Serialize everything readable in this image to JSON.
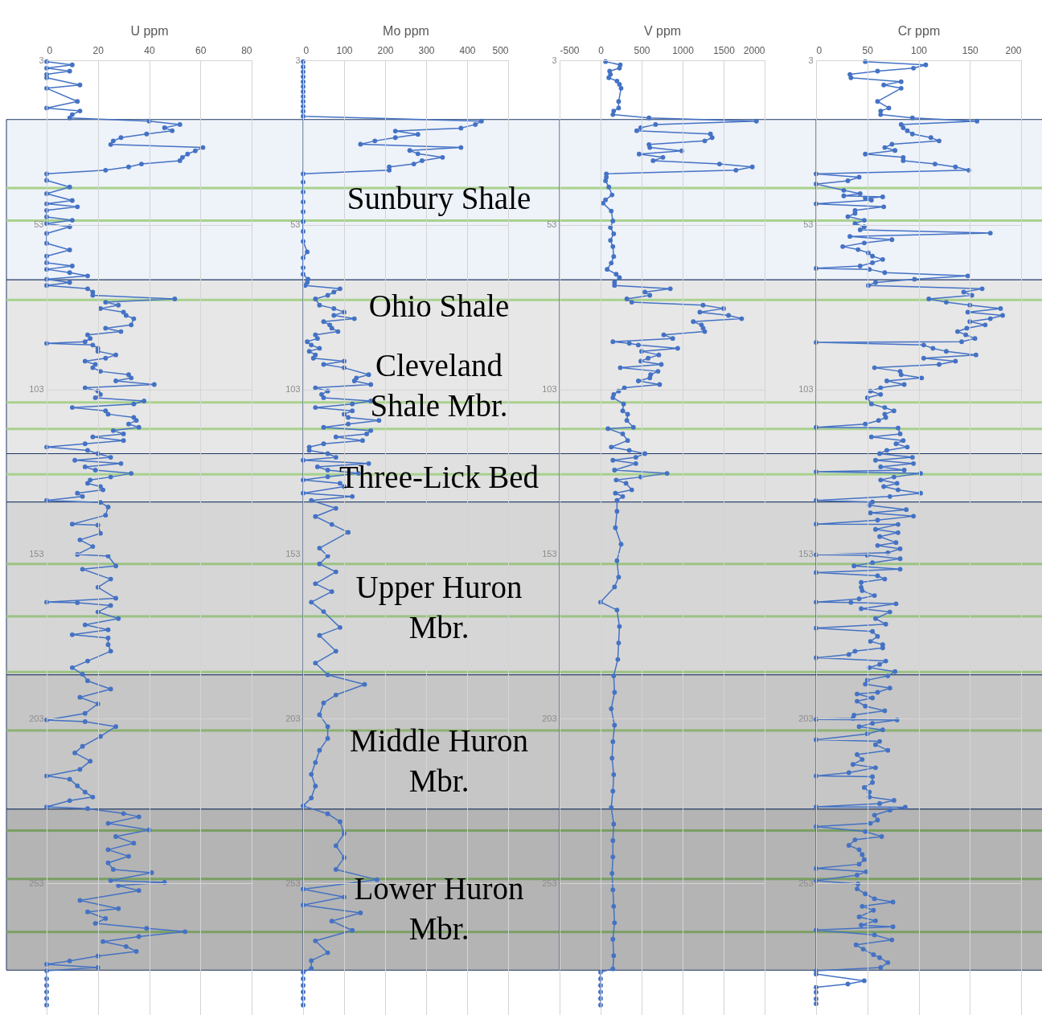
{
  "chart_data": [
    {
      "type": "line",
      "orientation": "horizontal",
      "xlabel": "U ppm",
      "marker": "circle",
      "grid": true,
      "xlim": [
        0,
        80
      ],
      "xticks": [
        0,
        20,
        40,
        60,
        80
      ],
      "ylim": [
        293,
        3
      ],
      "yticks": [
        3,
        53,
        103,
        153,
        203,
        253
      ],
      "series": [
        {
          "color": "#4472c4",
          "x": [
            3.4,
            4.4,
            5.4,
            6.3,
            7.3,
            8.3,
            10.5,
            11.5,
            15.5,
            17.5,
            18.4,
            19.5,
            20.5,
            21.5,
            22.5,
            23.5,
            24.4,
            25.4,
            26.5,
            27.5,
            28.6,
            29.5,
            30.5,
            31.5,
            32.5,
            33.5,
            34.5,
            35.4,
            36.4,
            37.5,
            39.5,
            41.5,
            43.5,
            45.6,
            46.6,
            47.5,
            48.6,
            50.6,
            51.6,
            52.6,
            53.6,
            55.6,
            58.6,
            60.6,
            62.5,
            64.5,
            65.5,
            66.5,
            67.5,
            68.5,
            69.5,
            70.5,
            71.4,
            72.4,
            73.4,
            74.4,
            75.5,
            76.5,
            77.4,
            78.4,
            79.5,
            80.5,
            81.5,
            83.4,
            84.4,
            85.4,
            86.4,
            87.5,
            88.5,
            89,
            89.5,
            90.5,
            91.4,
            92.5,
            93.5,
            94.4,
            95.4,
            96.4,
            97.5,
            98.5,
            99.5,
            100.4,
            101.5,
            102.5,
            103.5,
            104.5,
            105.5,
            106.5,
            107.4,
            108.5,
            109.5,
            110.5,
            111.5,
            112.4,
            113.5,
            114.5,
            115.5,
            116.5,
            117.4,
            118.5,
            119.5,
            120.5,
            121.5,
            122.5,
            123.6,
            124.5,
            125.5,
            126.5,
            127.5,
            128.5,
            129.6,
            130.5,
            131.5,
            132.5,
            133.5,
            134.5,
            135.5,
            136.7,
            137.3,
            138.7,
            141.2,
            143.9,
            144.2,
            146.7,
            148.7,
            150.7,
            153.1,
            153.6,
            156.6,
            157.6,
            160.6,
            163.1,
            166.4,
            167.6,
            167.8,
            168.6,
            170.6,
            172.6,
            174.5,
            176,
            177.5,
            178.5,
            180.5,
            182.5,
            185.5,
            187.5,
            189.5,
            191.5,
            194,
            196.5,
            198.5,
            201.4,
            203.4,
            203.9,
            205.4,
            208.4,
            211.4,
            213.4,
            215.9,
            218.4,
            220.4,
            221.4,
            223.4,
            225.3,
            226.8,
            227.9,
            229.8,
            230.3,
            231.8,
            232.8,
            234.8,
            236.8,
            238.8,
            240.8,
            242.8,
            244.8,
            246.8,
            248.8,
            249.8,
            252.2,
            252.7,
            253.7,
            255.2,
            258.2,
            260.7,
            261.7,
            263.7,
            265.2,
            266.7,
            267.7,
            269.2,
            270.7,
            272.2,
            273.7,
            275.1,
            276.6,
            277.6,
            278.6,
            279.6,
            282,
            284,
            286,
            288,
            290
          ],
          "values": [
            0,
            10,
            0,
            9,
            0,
            0,
            13,
            0,
            12,
            0,
            13,
            10,
            9,
            40,
            52,
            46,
            49,
            39,
            29,
            26,
            25,
            61,
            58,
            55,
            53,
            52,
            37,
            32,
            23,
            0,
            0,
            9,
            0,
            10,
            0,
            12,
            0,
            0,
            10,
            0,
            9,
            0,
            0,
            9,
            0,
            0,
            10,
            0,
            9,
            16,
            0,
            9,
            0,
            16,
            18,
            18,
            50,
            23,
            28,
            21,
            30,
            31,
            34,
            33,
            23,
            29,
            16,
            17,
            15,
            0,
            18,
            20,
            20,
            27,
            23,
            15,
            19,
            18,
            21,
            32,
            33,
            27,
            42,
            15,
            20,
            21,
            19,
            38,
            34,
            10,
            23,
            24,
            34,
            35,
            32,
            36,
            26,
            30,
            18,
            30,
            15,
            0,
            16,
            20,
            25,
            11,
            29,
            15,
            19,
            33,
            25,
            17,
            16,
            21,
            22,
            12,
            14,
            0,
            21,
            24,
            23,
            10,
            20,
            21,
            13,
            18,
            12,
            24,
            27,
            14,
            25,
            20,
            27,
            0,
            12,
            25,
            20,
            28,
            15,
            24,
            10,
            24,
            24,
            25,
            16,
            10,
            14,
            16,
            25,
            13,
            20,
            15,
            0,
            15,
            27,
            21,
            14,
            11,
            17,
            13,
            0,
            9,
            12,
            15,
            18,
            9,
            0,
            16,
            30,
            36,
            24,
            40,
            27,
            34,
            24,
            32,
            24,
            26,
            41,
            25,
            46,
            28,
            36,
            13,
            28,
            16,
            23,
            19,
            39,
            54,
            36,
            22,
            31,
            35,
            20,
            9,
            0,
            20,
            0,
            0,
            0,
            0,
            0,
            0
          ]
        }
      ],
      "bands": [
        {
          "axis": "y",
          "from": 21,
          "to": 69.7,
          "color": "#eef2f9"
        },
        {
          "axis": "y",
          "from": 69.7,
          "to": 122.5,
          "color": "#e7e7e7"
        },
        {
          "axis": "y",
          "from": 122.5,
          "to": 137.2,
          "color": "#e0e0e0"
        },
        {
          "axis": "y",
          "from": 137.2,
          "to": 189.7,
          "color": "#d6d6d6"
        },
        {
          "axis": "y",
          "from": 189.7,
          "to": 230.5,
          "color": "#c6c6c6"
        },
        {
          "axis": "y",
          "from": 230.5,
          "to": 279.4,
          "color": "#b4b4b4"
        }
      ],
      "ref_lines": [
        {
          "axis": "y",
          "value": 41.8,
          "color": "#a9d18e"
        },
        {
          "axis": "y",
          "value": 51.7,
          "color": "#a9d18e"
        },
        {
          "axis": "y",
          "value": 75.8,
          "color": "#a9d18e"
        },
        {
          "axis": "y",
          "value": 106.9,
          "color": "#a9d18e"
        },
        {
          "axis": "y",
          "value": 115,
          "color": "#a9d18e"
        },
        {
          "axis": "y",
          "value": 128.8,
          "color": "#a9d18e"
        },
        {
          "axis": "y",
          "value": 156,
          "color": "#9cc283"
        },
        {
          "axis": "y",
          "value": 171.9,
          "color": "#9cc283"
        },
        {
          "axis": "y",
          "value": 188.8,
          "color": "#9cc283"
        },
        {
          "axis": "y",
          "value": 206.6,
          "color": "#8cb173"
        },
        {
          "axis": "y",
          "value": 237,
          "color": "#7a9f63"
        },
        {
          "axis": "y",
          "value": 251.7,
          "color": "#7a9f63"
        },
        {
          "axis": "y",
          "value": 267.8,
          "color": "#7a9f63"
        }
      ]
    },
    {
      "type": "line",
      "orientation": "horizontal",
      "xlabel": "Mo ppm",
      "marker": "circle",
      "grid": true,
      "xlim": [
        0,
        500
      ],
      "xticks": [
        0,
        100,
        200,
        300,
        400,
        500
      ],
      "ylim": [
        293,
        3
      ],
      "yticks": [
        3,
        53,
        103,
        153,
        203,
        253
      ],
      "series": [
        {
          "color": "#4472c4",
          "x": [
            3.4,
            5,
            6.5,
            8,
            9.5,
            11,
            12.5,
            14,
            15.5,
            17,
            18.5,
            20,
            21.5,
            22.5,
            23.6,
            24.5,
            25.5,
            26.5,
            27.5,
            28.5,
            29.5,
            30.4,
            31.4,
            32.5,
            33.5,
            34.5,
            35.4,
            36.4,
            37.5,
            40,
            43,
            46,
            49,
            52,
            55,
            58,
            61.2,
            63,
            66,
            68,
            69.5,
            70.5,
            71.4,
            72.4,
            73.4,
            74.4,
            75.5,
            77.4,
            78.4,
            79.5,
            80.5,
            81.5,
            82.4,
            83.4,
            84.4,
            85.4,
            86.4,
            87.5,
            88.5,
            89.5,
            90.5,
            91.4,
            92.5,
            93.5,
            94.4,
            95.4,
            96.4,
            98.5,
            99.5,
            100.4,
            101.5,
            102.5,
            103.5,
            104.5,
            105.5,
            106.5,
            107.4,
            108.5,
            109.5,
            110.5,
            111.5,
            112.4,
            113.5,
            114.5,
            115.5,
            116.5,
            117.4,
            118.5,
            119.5,
            120.5,
            121.5,
            122.5,
            123.6,
            124.5,
            125.5,
            126.5,
            127.5,
            128.5,
            129.5,
            130.5,
            131.5,
            132.5,
            134.5,
            135.5,
            136.7,
            139.1,
            141.6,
            144,
            146.4,
            151.2,
            153.6,
            156,
            158.4,
            162,
            164.4,
            167.6,
            170.5,
            175.3,
            177.7,
            182.5,
            186.1,
            189.7,
            192.6,
            195.8,
            198.2,
            201.8,
            205.4,
            209,
            212.6,
            216.3,
            219.9,
            223.5,
            227.1,
            229.5,
            231.9,
            234.3,
            237.9,
            241.6,
            245.2,
            248.8,
            251.9,
            254.8,
            257.2,
            259.6,
            262,
            264.5,
            267.3,
            270.5,
            274.1,
            276.5,
            278.9,
            280,
            282,
            284,
            286,
            288,
            290
          ],
          "values": [
            0,
            0,
            0,
            0,
            0,
            0,
            0,
            0,
            0,
            0,
            0,
            0,
            435,
            420,
            385,
            225,
            280,
            225,
            175,
            140,
            385,
            260,
            280,
            340,
            290,
            270,
            210,
            210,
            0,
            0,
            0,
            0,
            0,
            0,
            0,
            0,
            10,
            0,
            0,
            0,
            12,
            10,
            5,
            90,
            75,
            60,
            30,
            40,
            75,
            100,
            75,
            125,
            50,
            65,
            70,
            85,
            30,
            35,
            10,
            20,
            40,
            15,
            30,
            25,
            100,
            50,
            100,
            160,
            130,
            125,
            165,
            30,
            60,
            45,
            50,
            165,
            120,
            30,
            120,
            100,
            110,
            185,
            110,
            50,
            165,
            155,
            80,
            145,
            50,
            15,
            15,
            60,
            80,
            0,
            160,
            35,
            60,
            135,
            60,
            0,
            90,
            100,
            0,
            120,
            20,
            80,
            30,
            70,
            110,
            40,
            60,
            40,
            80,
            30,
            70,
            20,
            50,
            90,
            40,
            80,
            30,
            60,
            150,
            80,
            50,
            40,
            60,
            60,
            40,
            30,
            20,
            30,
            20,
            0,
            60,
            90,
            100,
            80,
            100,
            80,
            180,
            0,
            100,
            0,
            140,
            70,
            120,
            30,
            60,
            20,
            20,
            0,
            0,
            0,
            0,
            0,
            0
          ]
        }
      ],
      "bands": [
        {
          "axis": "y",
          "from": 21,
          "to": 69.7,
          "color": "#eef2f9"
        },
        {
          "axis": "y",
          "from": 69.7,
          "to": 122.5,
          "color": "#e7e7e7"
        },
        {
          "axis": "y",
          "from": 122.5,
          "to": 137.2,
          "color": "#e0e0e0"
        },
        {
          "axis": "y",
          "from": 137.2,
          "to": 189.7,
          "color": "#d6d6d6"
        },
        {
          "axis": "y",
          "from": 189.7,
          "to": 230.5,
          "color": "#c6c6c6"
        },
        {
          "axis": "y",
          "from": 230.5,
          "to": 279.4,
          "color": "#b4b4b4"
        }
      ],
      "ref_lines": [
        {
          "axis": "y",
          "value": 41.8,
          "color": "#a9d18e"
        },
        {
          "axis": "y",
          "value": 51.7,
          "color": "#a9d18e"
        },
        {
          "axis": "y",
          "value": 75.8,
          "color": "#a9d18e"
        },
        {
          "axis": "y",
          "value": 106.9,
          "color": "#a9d18e"
        },
        {
          "axis": "y",
          "value": 115,
          "color": "#a9d18e"
        },
        {
          "axis": "y",
          "value": 128.8,
          "color": "#a9d18e"
        },
        {
          "axis": "y",
          "value": 156,
          "color": "#9cc283"
        },
        {
          "axis": "y",
          "value": 171.9,
          "color": "#9cc283"
        },
        {
          "axis": "y",
          "value": 188.8,
          "color": "#9cc283"
        },
        {
          "axis": "y",
          "value": 206.6,
          "color": "#8cb173"
        },
        {
          "axis": "y",
          "value": 237,
          "color": "#7a9f63"
        },
        {
          "axis": "y",
          "value": 251.7,
          "color": "#7a9f63"
        },
        {
          "axis": "y",
          "value": 267.8,
          "color": "#7a9f63"
        }
      ]
    },
    {
      "type": "line",
      "orientation": "horizontal",
      "xlabel": "V ppm",
      "marker": "circle",
      "grid": true,
      "xlim": [
        -500,
        2000
      ],
      "xticks": [
        -500,
        0,
        500,
        1000,
        1500,
        2000
      ],
      "ylim": [
        293,
        3
      ],
      "yticks": [
        3,
        53,
        103,
        153,
        203,
        253
      ],
      "series": [
        {
          "color": "#4472c4",
          "x": [
            3.4,
            4.4,
            5.4,
            6.3,
            7.3,
            8.3,
            9.3,
            10.3,
            11.5,
            15.5,
            17.5,
            18.4,
            19.5,
            20.5,
            21.5,
            22.5,
            23.5,
            24.4,
            25.4,
            26.5,
            27.5,
            28.6,
            29.5,
            30.5,
            31.5,
            32.5,
            33.5,
            34.5,
            35.4,
            36.4,
            37.5,
            38.5,
            39.6,
            41.5,
            43.9,
            45.4,
            46.4,
            48.8,
            51.8,
            53.8,
            55.7,
            57.7,
            59.6,
            62.6,
            64.6,
            66.5,
            68,
            69,
            70.5,
            71.4,
            72.4,
            73.4,
            74.4,
            75.5,
            76.5,
            77.4,
            78.4,
            79.5,
            80.5,
            81.5,
            82.4,
            83.4,
            84.4,
            85.4,
            86.4,
            87.5,
            88.5,
            89,
            89.5,
            90.5,
            91.4,
            92.5,
            93.5,
            94.4,
            95.4,
            96.4,
            97.5,
            98.5,
            99.5,
            100.4,
            101.5,
            102.5,
            103.5,
            104.5,
            105.5,
            107.4,
            109.5,
            110.5,
            112.4,
            114.5,
            114.9,
            116.5,
            118.5,
            120.5,
            121.5,
            122.5,
            123.6,
            124.5,
            125.5,
            127.5,
            128.5,
            129.6,
            130.5,
            131.5,
            133.5,
            134.5,
            135.5,
            136.7,
            140,
            145,
            150,
            155,
            160,
            163,
            167.6,
            170,
            175,
            180,
            185,
            190,
            195,
            200,
            205,
            210,
            215,
            220,
            225,
            230,
            235,
            240,
            245,
            250,
            255,
            260,
            265,
            270,
            275,
            279,
            280,
            282,
            284,
            286,
            288,
            290
          ],
          "values": [
            60,
            240,
            230,
            110,
            120,
            100,
            200,
            230,
            250,
            220,
            220,
            160,
            150,
            590,
            1900,
            670,
            490,
            440,
            1340,
            1360,
            1270,
            590,
            600,
            990,
            470,
            760,
            640,
            1450,
            1850,
            1650,
            70,
            70,
            60,
            100,
            140,
            60,
            30,
            130,
            150,
            120,
            160,
            120,
            150,
            160,
            130,
            80,
            190,
            230,
            170,
            170,
            850,
            540,
            600,
            320,
            380,
            1250,
            1500,
            1210,
            1560,
            1720,
            1130,
            1230,
            1250,
            1270,
            770,
            880,
            150,
            350,
            460,
            940,
            500,
            710,
            580,
            490,
            740,
            240,
            700,
            610,
            600,
            460,
            720,
            290,
            220,
            160,
            150,
            280,
            270,
            330,
            320,
            400,
            90,
            270,
            330,
            130,
            350,
            540,
            430,
            150,
            430,
            170,
            810,
            490,
            190,
            310,
            380,
            180,
            270,
            200,
            200,
            180,
            250,
            200,
            220,
            170,
            0,
            200,
            230,
            220,
            210,
            160,
            170,
            130,
            170,
            150,
            140,
            160,
            150,
            130,
            160,
            150,
            150,
            140,
            150,
            160,
            170,
            150,
            160,
            150,
            0,
            0,
            0,
            0,
            0,
            0
          ]
        }
      ],
      "bands": [
        {
          "axis": "y",
          "from": 21,
          "to": 69.7,
          "color": "#eef2f9",
          "label": "Sunbury Shale"
        },
        {
          "axis": "y",
          "from": 69.7,
          "to": 122.5,
          "color": "#e7e7e7",
          "label": "Cleveland Shale Mbr."
        },
        {
          "axis": "y",
          "from": 122.5,
          "to": 137.2,
          "color": "#e0e0e0",
          "label": "Three-Lick Bed"
        },
        {
          "axis": "y",
          "from": 137.2,
          "to": 189.7,
          "color": "#d6d6d6",
          "label": "Upper Huron Mbr."
        },
        {
          "axis": "y",
          "from": 189.7,
          "to": 230.5,
          "color": "#c6c6c6",
          "label": "Middle Huron Mbr."
        },
        {
          "axis": "y",
          "from": 230.5,
          "to": 279.4,
          "color": "#b4b4b4",
          "label": "Lower Huron Mbr."
        }
      ],
      "annotations": [
        "Ohio Shale"
      ],
      "ref_lines": [
        {
          "axis": "y",
          "value": 41.8,
          "color": "#a9d18e"
        },
        {
          "axis": "y",
          "value": 51.7,
          "color": "#a9d18e"
        },
        {
          "axis": "y",
          "value": 75.8,
          "color": "#a9d18e"
        },
        {
          "axis": "y",
          "value": 106.9,
          "color": "#a9d18e"
        },
        {
          "axis": "y",
          "value": 115,
          "color": "#a9d18e"
        },
        {
          "axis": "y",
          "value": 128.8,
          "color": "#a9d18e"
        },
        {
          "axis": "y",
          "value": 156,
          "color": "#9cc283"
        },
        {
          "axis": "y",
          "value": 171.9,
          "color": "#9cc283"
        },
        {
          "axis": "y",
          "value": 188.8,
          "color": "#9cc283"
        },
        {
          "axis": "y",
          "value": 206.6,
          "color": "#8cb173"
        },
        {
          "axis": "y",
          "value": 237,
          "color": "#7a9f63"
        },
        {
          "axis": "y",
          "value": 251.7,
          "color": "#7a9f63"
        },
        {
          "axis": "y",
          "value": 267.8,
          "color": "#7a9f63"
        }
      ]
    },
    {
      "type": "line",
      "orientation": "horizontal",
      "xlabel": "Cr ppm",
      "marker": "circle",
      "grid": true,
      "xlim": [
        0,
        200
      ],
      "xticks": [
        0,
        50,
        100,
        150,
        200
      ],
      "ylim": [
        293,
        3
      ],
      "yticks": [
        3,
        53,
        103,
        153,
        203,
        253
      ],
      "series": [
        {
          "color": "#4472c4",
          "x": [
            3.4,
            4.4,
            5.4,
            6.3,
            7.3,
            8.3,
            9.5,
            10.5,
            11.5,
            15.5,
            17.5,
            18.4,
            19.5,
            20.5,
            21.5,
            22.5,
            23.5,
            24.4,
            25.4,
            26.5,
            27.5,
            28.5,
            29.5,
            30.4,
            31.5,
            32.5,
            33.5,
            34.5,
            35.4,
            36.4,
            37.5,
            38.5,
            39.6,
            40.6,
            42.5,
            43.5,
            44.2,
            44.5,
            44.9,
            45.5,
            46.6,
            47.5,
            48.6,
            49.5,
            50.5,
            51.6,
            52.6,
            53.6,
            54.5,
            55.5,
            56.5,
            57.5,
            58.5,
            59.6,
            60.5,
            61.5,
            62.5,
            63.5,
            64.5,
            65.5,
            66.2,
            66.5,
            67.5,
            68.5,
            69.5,
            70.5,
            71.4,
            72.4,
            73.4,
            74.4,
            75.5,
            76.5,
            77.4,
            78.4,
            79.5,
            80.5,
            81.5,
            82.4,
            83.4,
            84.4,
            85.4,
            86.4,
            87.5,
            88.5,
            88.7,
            89.5,
            90.5,
            91.4,
            92.5,
            93.5,
            94.4,
            95.4,
            96.4,
            97.5,
            98.5,
            99.5,
            100.4,
            101.5,
            102.5,
            103.5,
            104.5,
            105.5,
            107.4,
            108.5,
            109.5,
            110.5,
            111.5,
            112.4,
            113.5,
            114.5,
            114.7,
            116.5,
            117.4,
            118.5,
            119.5,
            120.5,
            121.5,
            122.5,
            123.6,
            124.5,
            125.5,
            126.5,
            127.5,
            128,
            128.5,
            129.6,
            130.5,
            131.5,
            132.5,
            133.5,
            134.5,
            135.5,
            136.7,
            137.2,
            138.2,
            139.5,
            140.5,
            141.5,
            142.7,
            143.9,
            144,
            145.5,
            146.5,
            147.7,
            149.5,
            150.4,
            151.4,
            152.6,
            153.2,
            153.4,
            154.4,
            155.6,
            156.6,
            157.6,
            158.6,
            159.6,
            160.6,
            161.6,
            163.1,
            164.1,
            165.6,
            166.6,
            167.6,
            167.7,
            168.1,
            169.6,
            170.6,
            172.6,
            174.3,
            175.5,
            176.5,
            178,
            179.5,
            180.5,
            181.5,
            182.5,
            183.5,
            184.5,
            185.5,
            186.5,
            187.5,
            188.7,
            190,
            191.3,
            192.5,
            193.7,
            195,
            195.5,
            196.7,
            197.7,
            199.2,
            200.6,
            201.9,
            202.9,
            203.2,
            203.4,
            204.4,
            205.4,
            206.4,
            207.6,
            209.4,
            209.9,
            210.9,
            212.6,
            213.9,
            215.4,
            216.9,
            217.9,
            219.4,
            220.4,
            220.6,
            222.4,
            223.9,
            225.3,
            226.8,
            227.8,
            228.8,
            229.8,
            229.9,
            230.8,
            232.3,
            233.8,
            234.8,
            235.8,
            237.3,
            238.8,
            239.8,
            241.5,
            242.8,
            244.3,
            245.8,
            247.2,
            248.5,
            249.5,
            250.5,
            252.2,
            253.2,
            254.7,
            256.2,
            257.7,
            258.7,
            260,
            261.2,
            263.2,
            264.4,
            265.7,
            266.2,
            267.2,
            268.7,
            270.2,
            271.7,
            273,
            274.7,
            275.6,
            277.1,
            278.6,
            279.6,
            280.6,
            282.6,
            283.6,
            284.6,
            286.1,
            288.1,
            289.6
          ],
          "values": [
            48,
            107,
            95,
            60,
            33,
            34,
            83,
            66,
            83,
            60,
            71,
            63,
            63,
            94,
            157,
            83,
            85,
            89,
            94,
            112,
            120,
            74,
            67,
            77,
            48,
            85,
            85,
            116,
            136,
            149,
            0,
            42,
            31,
            0,
            27,
            43,
            27,
            65,
            48,
            54,
            0,
            66,
            38,
            38,
            31,
            47,
            38,
            47,
            43,
            170,
            33,
            74,
            47,
            26,
            41,
            51,
            55,
            65,
            55,
            43,
            0,
            52,
            67,
            148,
            96,
            58,
            51,
            162,
            144,
            152,
            110,
            127,
            150,
            180,
            148,
            182,
            170,
            150,
            165,
            147,
            138,
            146,
            155,
            142,
            0,
            105,
            114,
            127,
            156,
            105,
            136,
            120,
            57,
            82,
            83,
            103,
            69,
            86,
            63,
            53,
            63,
            50,
            54,
            67,
            76,
            67,
            68,
            61,
            48,
            0,
            80,
            82,
            54,
            85,
            78,
            89,
            69,
            62,
            94,
            58,
            95,
            63,
            86,
            0,
            102,
            76,
            63,
            79,
            66,
            80,
            102,
            72,
            0,
            55,
            52,
            88,
            53,
            95,
            60,
            0,
            80,
            58,
            80,
            62,
            78,
            60,
            82,
            70,
            0,
            50,
            82,
            55,
            37,
            82,
            0,
            60,
            67,
            44,
            44,
            45,
            57,
            42,
            0,
            34,
            78,
            44,
            72,
            58,
            68,
            0,
            55,
            60,
            53,
            65,
            65,
            38,
            32,
            0,
            68,
            62,
            52,
            77,
            70,
            50,
            48,
            72,
            60,
            40,
            55,
            40,
            48,
            67,
            37,
            36,
            0,
            79,
            55,
            42,
            65,
            50,
            0,
            62,
            58,
            70,
            40,
            45,
            36,
            58,
            32,
            0,
            55,
            55,
            47,
            52,
            52,
            76,
            62,
            0,
            87,
            72,
            57,
            60,
            53,
            0,
            48,
            64,
            38,
            32,
            42,
            45,
            47,
            42,
            0,
            49,
            40,
            0,
            41,
            40,
            48,
            57,
            75,
            45,
            56,
            42,
            58,
            44,
            75,
            0,
            57,
            74,
            39,
            46,
            56,
            62,
            70,
            63,
            0,
            0,
            47,
            31,
            0,
            0,
            0,
            0
          ]
        }
      ],
      "bands": [
        {
          "axis": "y",
          "from": 21,
          "to": 69.7,
          "color": "#eef2f9"
        },
        {
          "axis": "y",
          "from": 69.7,
          "to": 122.5,
          "color": "#e7e7e7"
        },
        {
          "axis": "y",
          "from": 122.5,
          "to": 137.2,
          "color": "#e0e0e0"
        },
        {
          "axis": "y",
          "from": 137.2,
          "to": 189.7,
          "color": "#d6d6d6"
        },
        {
          "axis": "y",
          "from": 189.7,
          "to": 230.5,
          "color": "#c6c6c6"
        },
        {
          "axis": "y",
          "from": 230.5,
          "to": 279.4,
          "color": "#b4b4b4"
        }
      ],
      "ref_lines": [
        {
          "axis": "y",
          "value": 41.8,
          "color": "#a9d18e"
        },
        {
          "axis": "y",
          "value": 51.7,
          "color": "#a9d18e"
        },
        {
          "axis": "y",
          "value": 75.8,
          "color": "#a9d18e"
        },
        {
          "axis": "y",
          "value": 106.9,
          "color": "#a9d18e"
        },
        {
          "axis": "y",
          "value": 115,
          "color": "#a9d18e"
        },
        {
          "axis": "y",
          "value": 128.8,
          "color": "#a9d18e"
        },
        {
          "axis": "y",
          "value": 156,
          "color": "#9cc283"
        },
        {
          "axis": "y",
          "value": 171.9,
          "color": "#9cc283"
        },
        {
          "axis": "y",
          "value": 188.8,
          "color": "#9cc283"
        },
        {
          "axis": "y",
          "value": 206.6,
          "color": "#8cb173"
        },
        {
          "axis": "y",
          "value": 237,
          "color": "#7a9f63"
        },
        {
          "axis": "y",
          "value": 251.7,
          "color": "#7a9f63"
        },
        {
          "axis": "y",
          "value": 267.8,
          "color": "#7a9f63"
        }
      ]
    }
  ]
}
